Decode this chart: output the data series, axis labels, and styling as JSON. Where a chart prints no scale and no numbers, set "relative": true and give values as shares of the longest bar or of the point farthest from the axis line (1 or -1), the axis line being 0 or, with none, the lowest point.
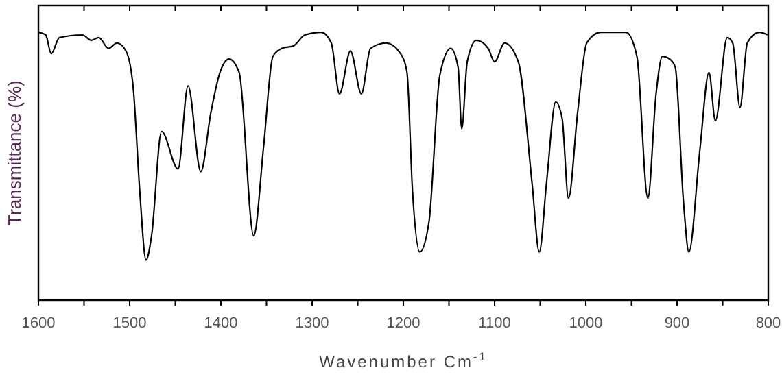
{
  "chart_data": {
    "type": "line",
    "relative": true,
    "xlabel": "Wavenumber Cm$^{-1}$",
    "ylabel": "Transmittance (%)",
    "xlim": [
      1600,
      800
    ],
    "xticks": [
      1600,
      {
        "value": 1550,
        "label": null
      },
      1500,
      {
        "value": 1450,
        "label": null
      },
      1400,
      {
        "value": 1350,
        "label": null
      },
      1300,
      {
        "value": 1250,
        "label": null
      },
      1200,
      {
        "value": 1150,
        "label": null
      },
      1100,
      {
        "value": 1050,
        "label": null
      },
      1000,
      {
        "value": 950,
        "label": null
      },
      900,
      {
        "value": 850,
        "label": null
      },
      800
    ],
    "x": [
      1600,
      1592,
      1586,
      1577,
      1552,
      1542,
      1534,
      1523,
      1514,
      1504,
      1496,
      1489,
      1482,
      1476,
      1465,
      1447,
      1436,
      1422,
      1411,
      1401,
      1391,
      1380,
      1364,
      1353,
      1343,
      1333,
      1320,
      1308,
      1290,
      1279,
      1270,
      1258,
      1246,
      1236,
      1219,
      1203,
      1196,
      1190,
      1182,
      1172,
      1160,
      1148,
      1140,
      1136,
      1130,
      1120,
      1107,
      1100,
      1089,
      1074,
      1059,
      1051,
      1043,
      1033,
      1026,
      1019,
      1009,
      999,
      984,
      956,
      944,
      932,
      923,
      916,
      908,
      902,
      893,
      887,
      875,
      865,
      858,
      845,
      839,
      831,
      823,
      810,
      800
    ],
    "series": [
      {
        "color": "#000000",
        "values": [
          1.0,
          0.99,
          0.92,
          0.98,
          0.99,
          0.97,
          0.98,
          0.94,
          0.96,
          0.93,
          0.79,
          0.41,
          0.15,
          0.24,
          0.63,
          0.49,
          0.8,
          0.48,
          0.7,
          0.85,
          0.9,
          0.85,
          0.24,
          0.58,
          0.91,
          0.94,
          0.95,
          0.99,
          1.0,
          0.96,
          0.77,
          0.93,
          0.77,
          0.94,
          0.96,
          0.92,
          0.85,
          0.41,
          0.18,
          0.29,
          0.84,
          0.94,
          0.87,
          0.64,
          0.89,
          0.97,
          0.94,
          0.89,
          0.96,
          0.89,
          0.44,
          0.18,
          0.44,
          0.74,
          0.68,
          0.38,
          0.7,
          0.96,
          1.0,
          1.0,
          0.91,
          0.38,
          0.77,
          0.91,
          0.9,
          0.87,
          0.37,
          0.18,
          0.56,
          0.85,
          0.67,
          0.98,
          0.96,
          0.72,
          0.96,
          1.0,
          0.99
        ]
      }
    ]
  }
}
